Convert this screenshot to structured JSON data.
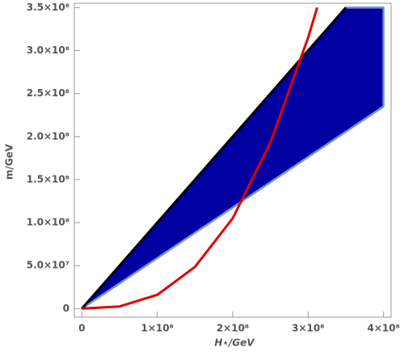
{
  "chart_data": {
    "type": "line",
    "x_label": "H⋆/GeV",
    "y_label": "m/GeV",
    "xlim": [
      -10000000,
      410000000
    ],
    "ylim": [
      -10000000,
      355000000
    ],
    "xticks": [
      0,
      {
        "value": 100000000,
        "label": "1×10⁸"
      },
      {
        "value": 200000000,
        "label": "2×10⁸"
      },
      {
        "value": 300000000,
        "label": "3×10⁸"
      },
      {
        "value": 400000000,
        "label": "4×10⁸"
      }
    ],
    "yticks": [
      0,
      {
        "value": 50000000,
        "label": "5.0×10⁷"
      },
      {
        "value": 100000000,
        "label": "1.0×10⁸"
      },
      {
        "value": 150000000,
        "label": "1.5×10⁸"
      },
      {
        "value": 200000000,
        "label": "2.0×10⁸"
      },
      {
        "value": 250000000,
        "label": "2.5×10⁸"
      },
      {
        "value": 300000000,
        "label": "3.0×10⁸"
      },
      {
        "value": 350000000,
        "label": "3.5×10⁸"
      }
    ],
    "regions": [
      {
        "x": [
          0,
          350000000,
          400000000,
          400000000,
          0
        ],
        "y": [
          0,
          350000000,
          350000000,
          235000000,
          0
        ],
        "color": "#0000a0",
        "edge_color": "#6f94d8"
      }
    ],
    "lines": [
      {
        "x": [
          0,
          350000000
        ],
        "y": [
          0,
          350000000
        ],
        "color": "#000000"
      },
      {
        "x": [
          0,
          50000000,
          100000000,
          150000000,
          200000000,
          250000000,
          300000000,
          312000000
        ],
        "y": [
          0,
          2500000,
          16000000,
          48500000,
          105000000,
          193000000,
          315000000,
          350000000
        ],
        "color": "#e00000"
      }
    ]
  }
}
